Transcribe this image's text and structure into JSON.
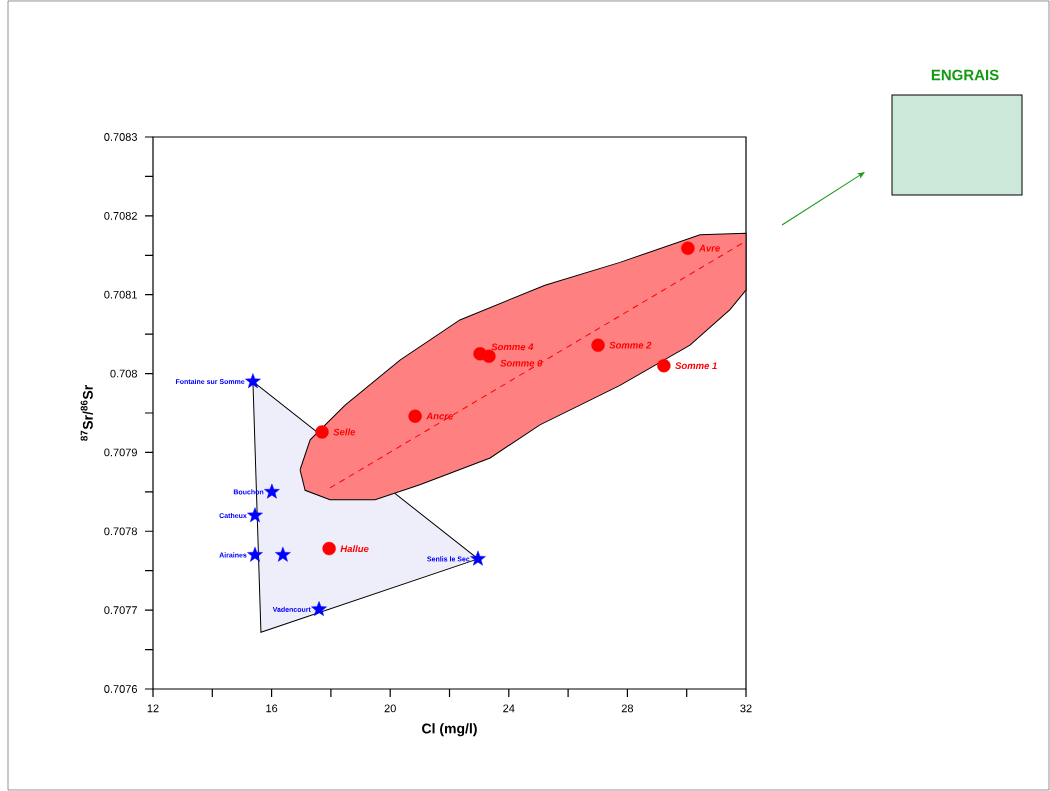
{
  "chart_data": {
    "type": "scatter",
    "xlabel": "Cl (mg/l)",
    "ylabel": "$^{87}$Sr/$^{86}$Sr",
    "xlim": [
      12,
      32
    ],
    "ylim": [
      0.7076,
      0.7083
    ],
    "xticks": [
      12,
      {
        "value": 14,
        "label": null
      },
      16,
      {
        "value": 18,
        "label": null
      },
      20,
      {
        "value": 22,
        "label": null
      },
      24,
      {
        "value": 26,
        "label": null
      },
      28,
      {
        "value": 30,
        "label": null
      },
      32
    ],
    "yticks": [
      0.7076,
      {
        "value": 0.70765,
        "label": null
      },
      0.7077,
      {
        "value": 0.70775,
        "label": null
      },
      0.7078,
      {
        "value": 0.70785,
        "label": null
      },
      0.7079,
      {
        "value": 0.70795,
        "label": null
      },
      0.708,
      {
        "value": 0.70805,
        "label": null
      },
      0.7081,
      {
        "value": 0.70815,
        "label": null
      },
      0.7082,
      {
        "value": 0.70825,
        "label": null
      },
      0.7083
    ],
    "grid": false,
    "series": [
      {
        "type": "area",
        "color": "#eeeefa",
        "x": [
          15.37,
          22.96,
          15.64,
          15.37
        ],
        "values": [
          0.70799,
          0.707765,
          0.707672,
          0.70799
        ]
      },
      {
        "type": "area",
        "color": "#ff8080",
        "x": [
          16.96,
          17.3,
          18.48,
          20.33,
          22.35,
          25.22,
          27.75,
          30.45,
          32.0,
          32.0,
          31.46,
          30.11,
          27.75,
          25.05,
          23.37,
          21.0,
          19.49,
          17.97,
          17.13,
          16.96
        ],
        "values": [
          0.707878,
          0.707916,
          0.70796,
          0.708017,
          0.708068,
          0.708112,
          0.708141,
          0.708176,
          0.708178,
          0.708106,
          0.708081,
          0.708036,
          0.707985,
          0.707935,
          0.707893,
          0.707859,
          0.70784,
          0.70784,
          0.707852,
          0.707878
        ]
      },
      {
        "type": "line",
        "color": "#ff0000",
        "line_style": "dashed",
        "x": [
          17.97,
          32.0
        ],
        "values": [
          0.707855,
          0.708168
        ]
      },
      {
        "marker": "star",
        "color": "#0000ff",
        "x": [
          15.37,
          16.01,
          15.44,
          15.44,
          16.38,
          22.96,
          17.6
        ],
        "values": [
          0.70799,
          0.70785,
          0.70782,
          0.70777,
          0.70777,
          0.707765,
          0.707701
        ]
      },
      {
        "marker": "circle",
        "color": "#ff0000",
        "x": [
          17.7,
          20.84,
          23.03,
          23.33,
          27.01,
          29.23,
          30.04,
          17.94
        ],
        "values": [
          0.707926,
          0.707946,
          0.708025,
          0.708022,
          0.708036,
          0.70801,
          0.708159,
          0.707778
        ]
      }
    ],
    "annotations": [
      "ENGRAIS",
      {
        "text": "Fontaine sur Somme",
        "x": 15.37,
        "y": 0.70799
      },
      {
        "text": "Bouchon",
        "x": 16.01,
        "y": 0.70785
      },
      {
        "text": "Catheux",
        "x": 15.44,
        "y": 0.70782
      },
      {
        "text": "Airaines",
        "x": 15.44,
        "y": 0.70777
      },
      {
        "text": "Senlis le Sec",
        "x": 22.96,
        "y": 0.707765
      },
      {
        "text": "Vadencourt",
        "x": 17.6,
        "y": 0.707701
      },
      {
        "text": "Selle",
        "x": 17.7,
        "y": 0.707926
      },
      {
        "text": "Ancre",
        "x": 20.84,
        "y": 0.707946
      },
      {
        "text": "Somme 4",
        "x": 23.03,
        "y": 0.708025
      },
      {
        "text": "Somme 0",
        "x": 23.33,
        "y": 0.708022
      },
      {
        "text": "Somme 2",
        "x": 27.01,
        "y": 0.708036
      },
      {
        "text": "Somme 1",
        "x": 29.23,
        "y": 0.70801
      },
      {
        "text": "Avre",
        "x": 30.04,
        "y": 0.708159
      },
      {
        "text": "Hallue",
        "x": 17.94,
        "y": 0.707778
      }
    ]
  }
}
